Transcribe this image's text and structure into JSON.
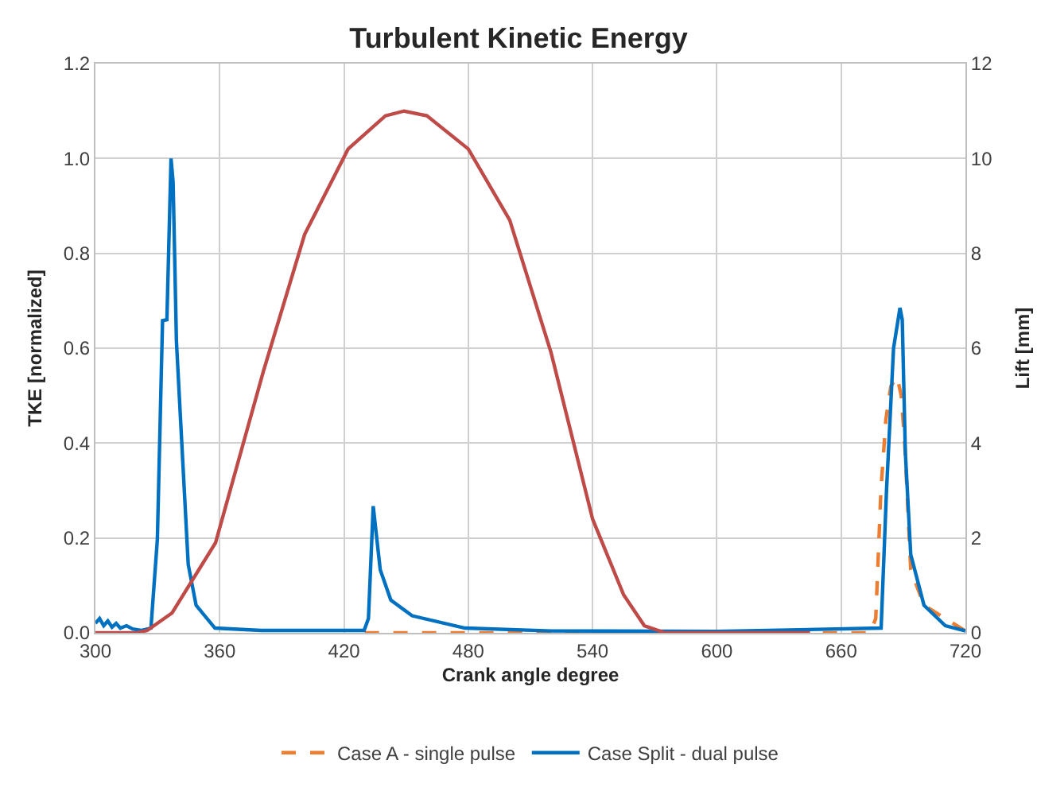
{
  "chart_data": {
    "type": "line",
    "title": "Turbulent Kinetic Energy",
    "xlabel": "Crank angle degree",
    "ylabel": "TKE [normalized]",
    "y2label": "Lift [mm]",
    "xlim": [
      300,
      720
    ],
    "xticks": [
      300,
      360,
      420,
      480,
      540,
      600,
      660,
      720
    ],
    "ylim": [
      0,
      1.2
    ],
    "yticks": [
      {
        "value": 0,
        "label": "0.0"
      },
      {
        "value": 0.2,
        "label": "0.2"
      },
      {
        "value": 0.4,
        "label": "0.4"
      },
      {
        "value": 0.6,
        "label": "0.6"
      },
      {
        "value": 0.8,
        "label": "0.8"
      },
      {
        "value": 1,
        "label": "1.0"
      },
      {
        "value": 1.2,
        "label": "1.2"
      }
    ],
    "y2lim": [
      0,
      12
    ],
    "y2ticks": [
      0,
      2,
      4,
      6,
      8,
      10,
      12
    ],
    "grid": true,
    "legend": "bottom",
    "marker": "none",
    "series": [
      {
        "name": "Case A - single pulse",
        "color": "#ed7d31",
        "line_style": "dashed",
        "x": [
          430,
          500,
          600,
          674,
          676.7,
          679.2,
          681.6,
          684,
          687,
          689,
          690.7,
          693.6,
          700,
          720
        ],
        "values": [
          0,
          0,
          0,
          0,
          0.03,
          0.3,
          0.45,
          0.52,
          0.54,
          0.5,
          0.4,
          0.133,
          0.058,
          0.004
        ]
      },
      {
        "name": "Case Split - dual pulse",
        "color": "#0070c0",
        "line_style": "solid",
        "x": [
          300,
          302,
          304,
          306,
          308,
          310,
          312,
          315,
          318,
          322,
          326.8,
          329.9,
          332.4,
          334.5,
          336.5,
          337.5,
          339.1,
          342.2,
          344.8,
          348.6,
          357.7,
          380,
          429.7,
          431.8,
          434.1,
          437.5,
          442.6,
          452.9,
          478.4,
          520,
          600,
          679.3,
          681.9,
          685.3,
          688.4,
          689.5,
          691,
          693.6,
          700,
          710.3,
          720
        ],
        "values": [
          0.02,
          0.03,
          0.015,
          0.025,
          0.012,
          0.02,
          0.01,
          0.015,
          0.008,
          0.005,
          0.01,
          0.197,
          0.658,
          0.66,
          1.0,
          0.95,
          0.615,
          0.358,
          0.144,
          0.058,
          0.01,
          0.005,
          0.005,
          0.03,
          0.267,
          0.133,
          0.069,
          0.036,
          0.01,
          0.004,
          0.003,
          0.01,
          0.3,
          0.6,
          0.685,
          0.66,
          0.38,
          0.165,
          0.058,
          0.015,
          0.004
        ]
      },
      {
        "color": "#be4b48",
        "line_style": "solid",
        "axis": "y2",
        "x": [
          300,
          320,
          325,
          337,
          358,
          381,
          401,
          422,
          440,
          449,
          460,
          480,
          500,
          520,
          540,
          555,
          565,
          575,
          645
        ],
        "values": [
          0,
          0,
          0.05,
          0.42,
          1.9,
          5.5,
          8.4,
          10.2,
          10.9,
          11,
          10.9,
          10.2,
          8.7,
          5.9,
          2.4,
          0.8,
          0.15,
          0,
          0
        ]
      }
    ]
  }
}
